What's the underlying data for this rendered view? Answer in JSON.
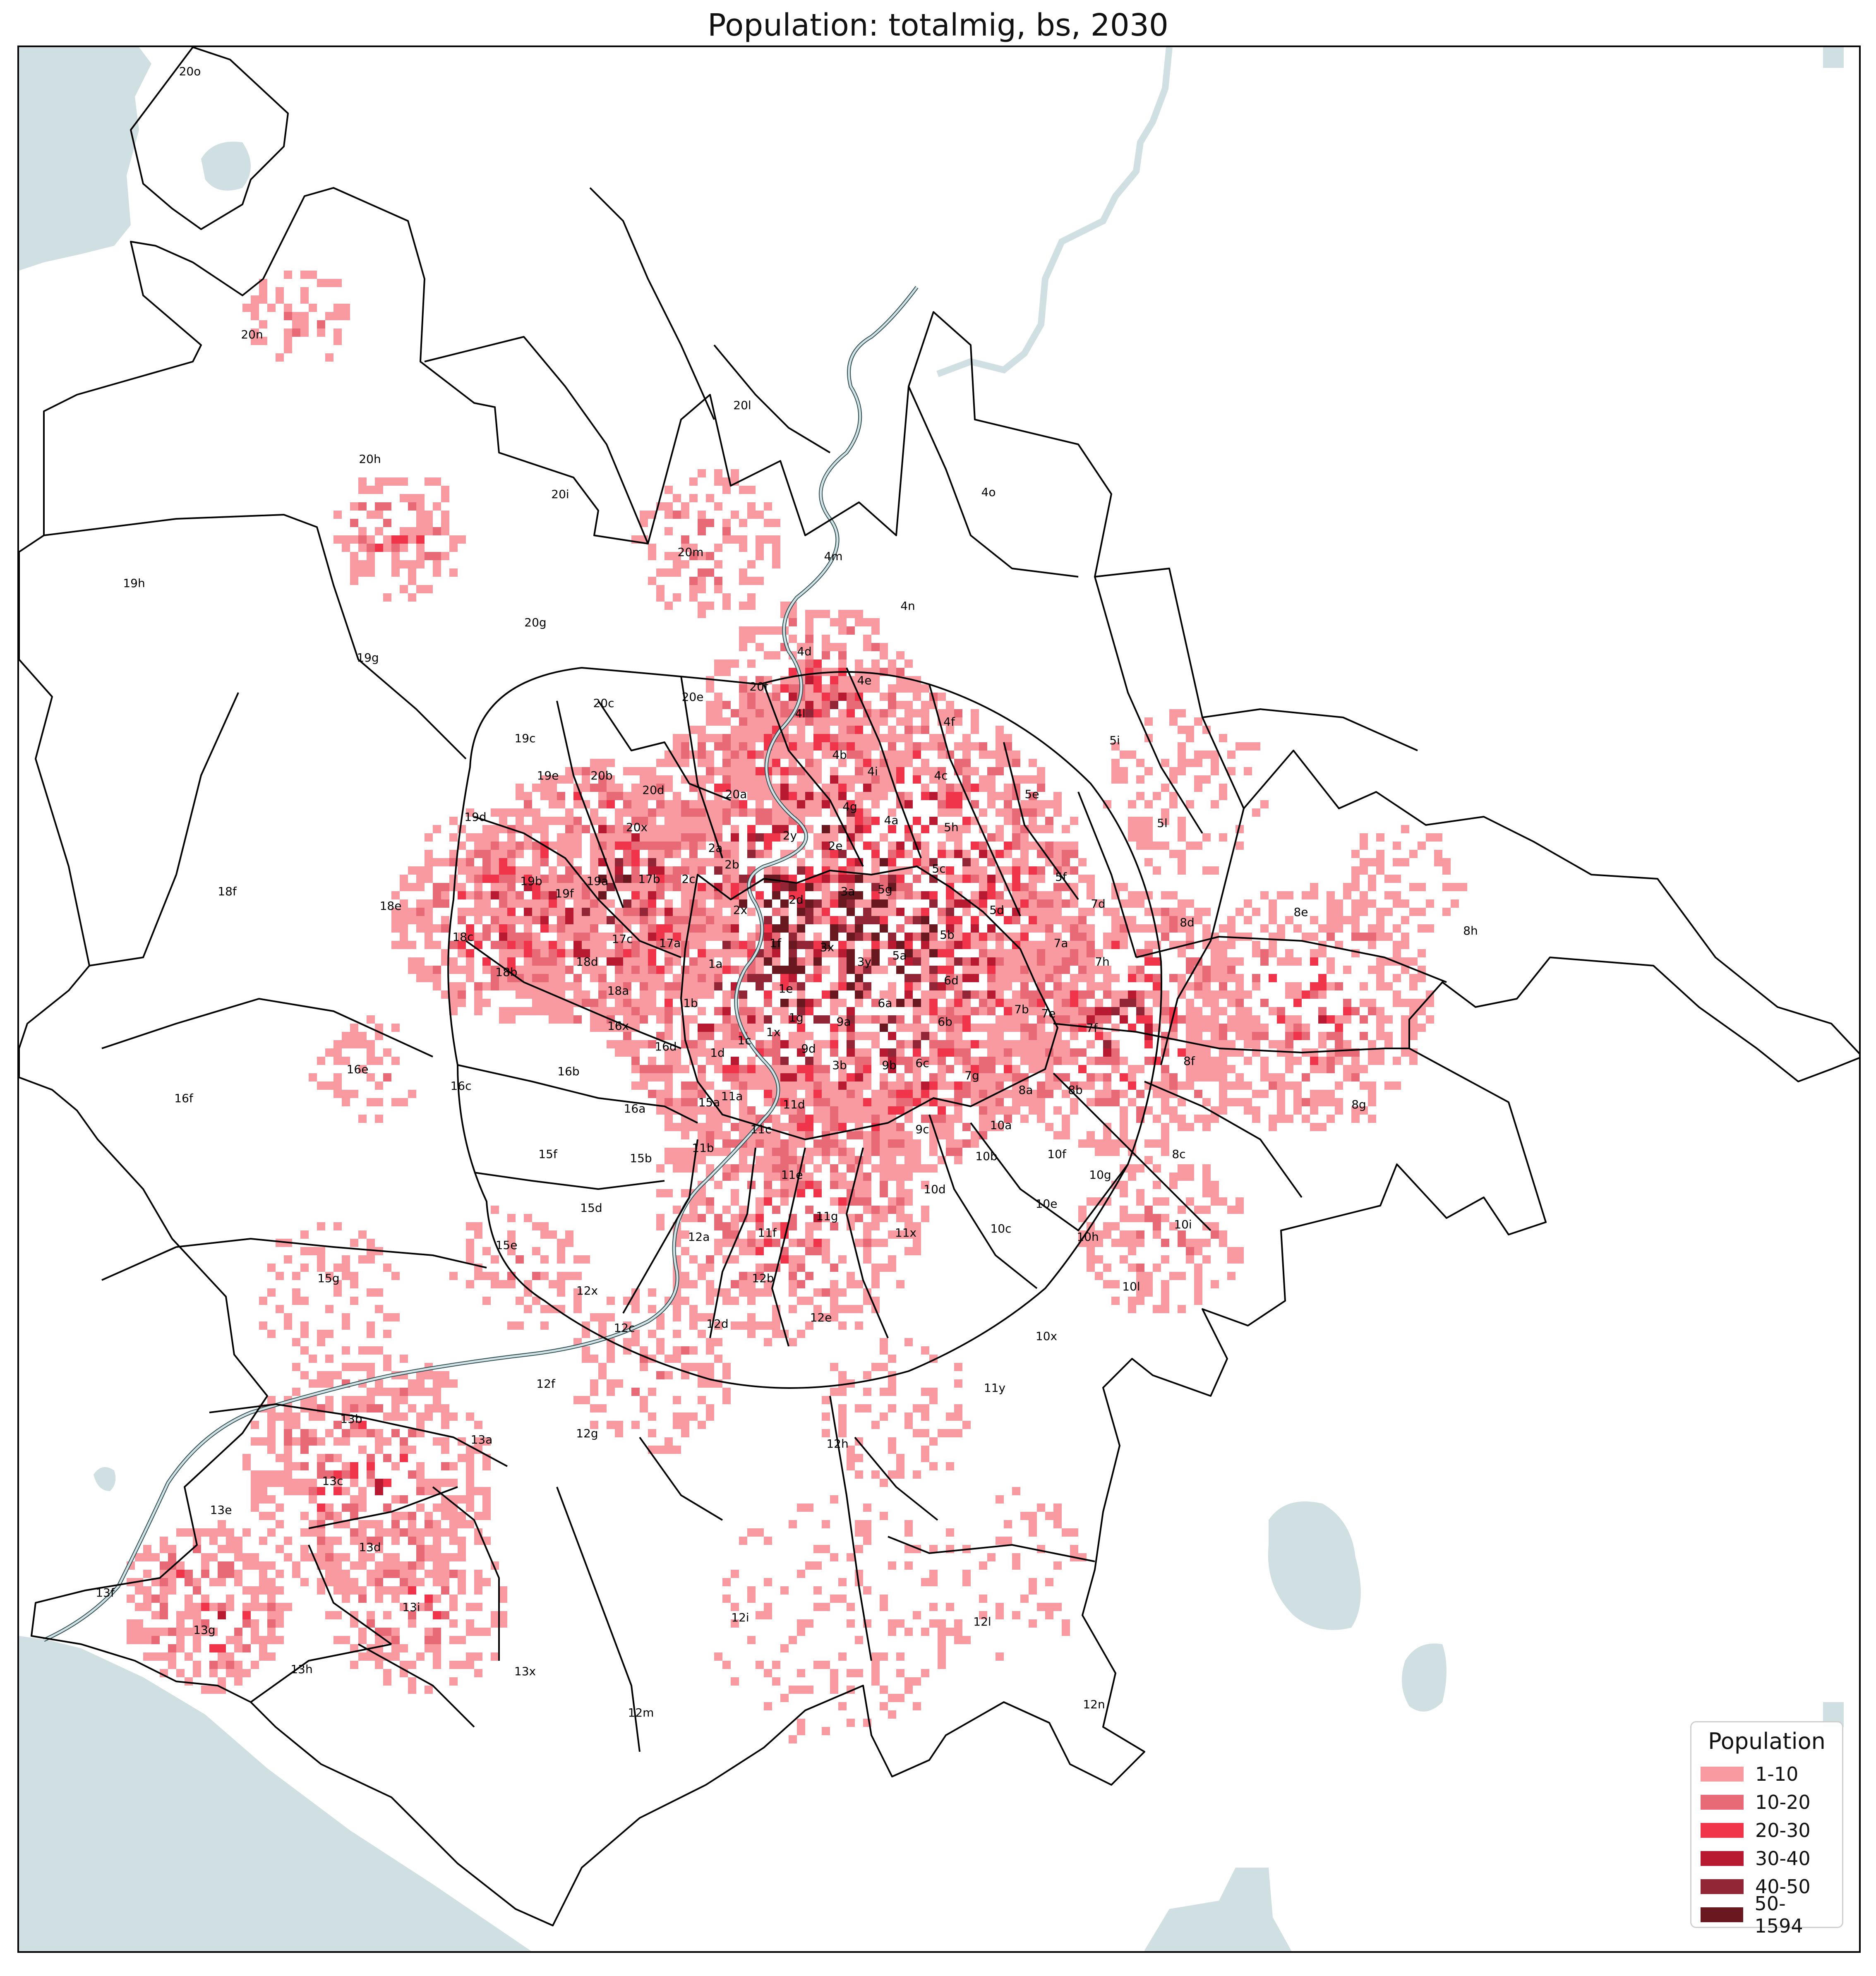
{
  "title": "Population: totalmig, bs, 2030",
  "legend": {
    "title": "Population",
    "items": [
      {
        "label": "1-10",
        "color": "#f99aa0"
      },
      {
        "label": "10-20",
        "color": "#e86a76"
      },
      {
        "label": "20-30",
        "color": "#f0344a"
      },
      {
        "label": "30-40",
        "color": "#b81a32"
      },
      {
        "label": "40-50",
        "color": "#922636"
      },
      {
        "label": "50-1594",
        "color": "#6a1820"
      }
    ]
  },
  "colors": {
    "water": "#d0dfe1",
    "boundary": "#000000",
    "background": "#ffffff"
  },
  "zones": [
    "20o",
    "20n",
    "20h",
    "20i",
    "20l",
    "4o",
    "4m",
    "4n",
    "20m",
    "19h",
    "19g",
    "20g",
    "4d",
    "4e",
    "20f",
    "20e",
    "20c",
    "4l",
    "4f",
    "5i",
    "19c",
    "4b",
    "4i",
    "4c",
    "5e",
    "19e",
    "20b",
    "20d",
    "20a",
    "4g",
    "4a",
    "19d",
    "20x",
    "2a",
    "2y",
    "2e",
    "5h",
    "5l",
    "18f",
    "19b",
    "19f",
    "19a",
    "17b",
    "2b",
    "2c",
    "2d",
    "3a",
    "5g",
    "5c",
    "5f",
    "18e",
    "2x",
    "5d",
    "7d",
    "8d",
    "8e",
    "8h",
    "18c",
    "17c",
    "17a",
    "1a",
    "1f",
    "3x",
    "3y",
    "5a",
    "5b",
    "7a",
    "18b",
    "18d",
    "6d",
    "18a",
    "7h",
    "1b",
    "1e",
    "6a",
    "7b",
    "7e",
    "16x",
    "6b",
    "7f",
    "1g",
    "9a",
    "1x",
    "1c",
    "16d",
    "1d",
    "9d",
    "3b",
    "9b",
    "6c",
    "8f",
    "16e",
    "16b",
    "16c",
    "7g",
    "8a",
    "8b",
    "8g",
    "16f",
    "16a",
    "15a",
    "11a",
    "11d",
    "10a",
    "15f",
    "11b",
    "11c",
    "9c",
    "10b",
    "10f",
    "8c",
    "15b",
    "11e",
    "10g",
    "15d",
    "10d",
    "10e",
    "11g",
    "11x",
    "10c",
    "10i",
    "15e",
    "12a",
    "11f",
    "10h",
    "15g",
    "12x",
    "12b",
    "10l",
    "12c",
    "12d",
    "12e",
    "10x",
    "11y",
    "12f",
    "13b",
    "13a",
    "12g",
    "12h",
    "13c",
    "13e",
    "13d",
    "13f",
    "13i",
    "13g",
    "12i",
    "12l",
    "13h",
    "13x",
    "12m",
    "12n"
  ]
}
